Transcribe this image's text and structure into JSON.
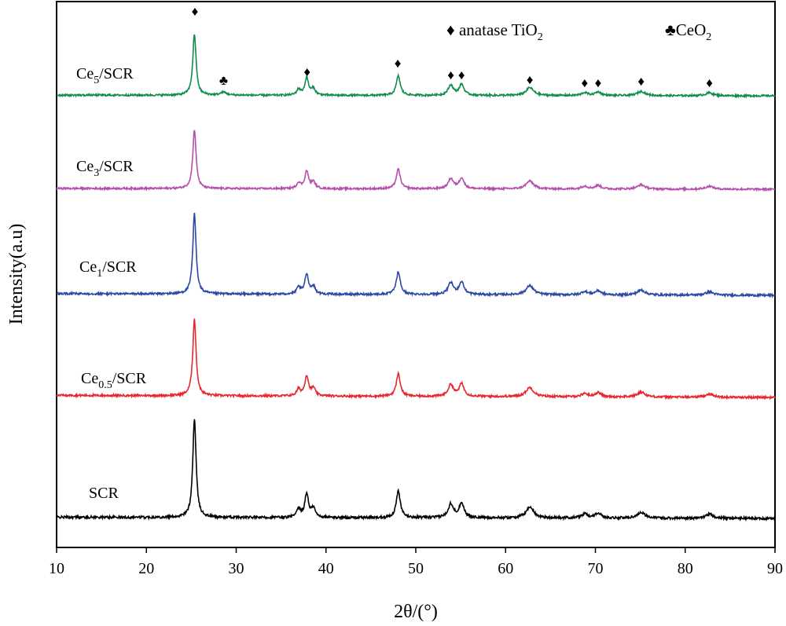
{
  "chart_data": {
    "type": "line",
    "title": "",
    "xlabel": "2θ/(°)",
    "ylabel": "Intensity(a.u)",
    "xlim": [
      10,
      90
    ],
    "xticks": [
      10,
      20,
      30,
      40,
      50,
      60,
      70,
      80,
      90
    ],
    "grid": false,
    "y_axis_ticks": "none",
    "legend": [
      {
        "symbol": "♦",
        "name": "anatase TiO",
        "sub": "2",
        "placement": "top-center"
      },
      {
        "symbol": "♣",
        "name": "CeO",
        "sub": "2",
        "placement": "top-right"
      }
    ],
    "peak_markers": [
      {
        "x": 25.4,
        "symbol": "♦"
      },
      {
        "x": 28.6,
        "symbol": "♣"
      },
      {
        "x": 37.9,
        "symbol": "♦"
      },
      {
        "x": 48.0,
        "symbol": "♦"
      },
      {
        "x": 53.9,
        "symbol": "♦"
      },
      {
        "x": 55.1,
        "symbol": "♦"
      },
      {
        "x": 62.7,
        "symbol": "♦"
      },
      {
        "x": 68.8,
        "symbol": "♦"
      },
      {
        "x": 70.3,
        "symbol": "♦"
      },
      {
        "x": 75.1,
        "symbol": "♦"
      },
      {
        "x": 82.7,
        "symbol": "♦"
      }
    ],
    "peak_profile": [
      {
        "x": 25.35,
        "h": 1.0,
        "w": 0.22
      },
      {
        "x": 36.95,
        "h": 0.08,
        "w": 0.25
      },
      {
        "x": 37.85,
        "h": 0.24,
        "w": 0.25
      },
      {
        "x": 38.6,
        "h": 0.09,
        "w": 0.25
      },
      {
        "x": 48.05,
        "h": 0.27,
        "w": 0.27
      },
      {
        "x": 53.9,
        "h": 0.14,
        "w": 0.35
      },
      {
        "x": 55.1,
        "h": 0.15,
        "w": 0.32
      },
      {
        "x": 62.7,
        "h": 0.11,
        "w": 0.5
      },
      {
        "x": 68.8,
        "h": 0.04,
        "w": 0.4
      },
      {
        "x": 70.3,
        "h": 0.05,
        "w": 0.4
      },
      {
        "x": 75.1,
        "h": 0.06,
        "w": 0.5
      },
      {
        "x": 82.7,
        "h": 0.04,
        "w": 0.5
      }
    ],
    "series": [
      {
        "name": "SCR",
        "label_main": "SCR",
        "label_sub": "",
        "label_tail": "",
        "color": "#000000",
        "peak_height": 1.0,
        "baseline_slope": 0.012,
        "cerium_peak": 0
      },
      {
        "name": "Ce0.5/SCR",
        "label_main": "Ce",
        "label_sub": "0.5",
        "label_tail": "/SCR",
        "color": "#e8262e",
        "peak_height": 0.92,
        "baseline_slope": 0.025,
        "cerium_peak": 0
      },
      {
        "name": "Ce1/SCR",
        "label_main": "Ce",
        "label_sub": "1",
        "label_tail": "/SCR",
        "color": "#2c49a3",
        "peak_height": 0.97,
        "baseline_slope": 0.02,
        "cerium_peak": 0
      },
      {
        "name": "Ce3/SCR",
        "label_main": "Ce",
        "label_sub": "3",
        "label_tail": "/SCR",
        "color": "#b64ead",
        "peak_height": 0.82,
        "baseline_slope": 0.012,
        "cerium_peak": 0
      },
      {
        "name": "Ce5/SCR",
        "label_main": "Ce",
        "label_sub": "5",
        "label_tail": "/SCR",
        "color": "#118d4b",
        "peak_height": 0.85,
        "baseline_slope": 0.01,
        "cerium_peak": 0.04
      }
    ]
  }
}
